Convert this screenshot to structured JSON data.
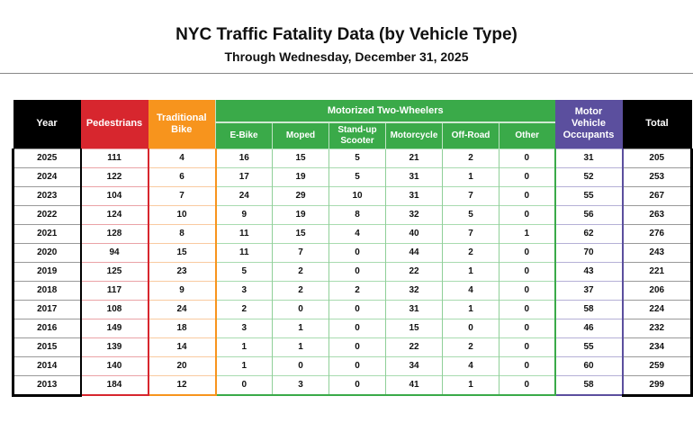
{
  "title": "NYC Traffic Fatality Data (by Vehicle Type)",
  "subtitle": "Through Wednesday, December 31, 2025",
  "colors": {
    "pedestrians": "#d7262e",
    "traditional_bike": "#f7941d",
    "motorized": "#3aaa49",
    "motor_vehicle": "#5b4f9e",
    "year_total": "#000000"
  },
  "headers": {
    "year": "Year",
    "pedestrians": "Pedestrians",
    "traditional_bike": "Traditional Bike",
    "motorized_group": "Motorized Two-Wheelers",
    "ebike": "E-Bike",
    "moped": "Moped",
    "scooter": "Stand-up Scooter",
    "motorcycle": "Motorcycle",
    "offroad": "Off-Road",
    "other": "Other",
    "motor_vehicle": "Motor Vehicle Occupants",
    "total": "Total"
  },
  "rows": [
    [
      "2025",
      "111",
      "4",
      "16",
      "15",
      "5",
      "21",
      "2",
      "0",
      "31",
      "205"
    ],
    [
      "2024",
      "122",
      "6",
      "17",
      "19",
      "5",
      "31",
      "1",
      "0",
      "52",
      "253"
    ],
    [
      "2023",
      "104",
      "7",
      "24",
      "29",
      "10",
      "31",
      "7",
      "0",
      "55",
      "267"
    ],
    [
      "2022",
      "124",
      "10",
      "9",
      "19",
      "8",
      "32",
      "5",
      "0",
      "56",
      "263"
    ],
    [
      "2021",
      "128",
      "8",
      "11",
      "15",
      "4",
      "40",
      "7",
      "1",
      "62",
      "276"
    ],
    [
      "2020",
      "94",
      "15",
      "11",
      "7",
      "0",
      "44",
      "2",
      "0",
      "70",
      "243"
    ],
    [
      "2019",
      "125",
      "23",
      "5",
      "2",
      "0",
      "22",
      "1",
      "0",
      "43",
      "221"
    ],
    [
      "2018",
      "117",
      "9",
      "3",
      "2",
      "2",
      "32",
      "4",
      "0",
      "37",
      "206"
    ],
    [
      "2017",
      "108",
      "24",
      "2",
      "0",
      "0",
      "31",
      "1",
      "0",
      "58",
      "224"
    ],
    [
      "2016",
      "149",
      "18",
      "3",
      "1",
      "0",
      "15",
      "0",
      "0",
      "46",
      "232"
    ],
    [
      "2015",
      "139",
      "14",
      "1",
      "1",
      "0",
      "22",
      "2",
      "0",
      "55",
      "234"
    ],
    [
      "2014",
      "140",
      "20",
      "1",
      "0",
      "0",
      "34",
      "4",
      "0",
      "60",
      "259"
    ],
    [
      "2013",
      "184",
      "12",
      "0",
      "3",
      "0",
      "41",
      "1",
      "0",
      "58",
      "299"
    ]
  ]
}
